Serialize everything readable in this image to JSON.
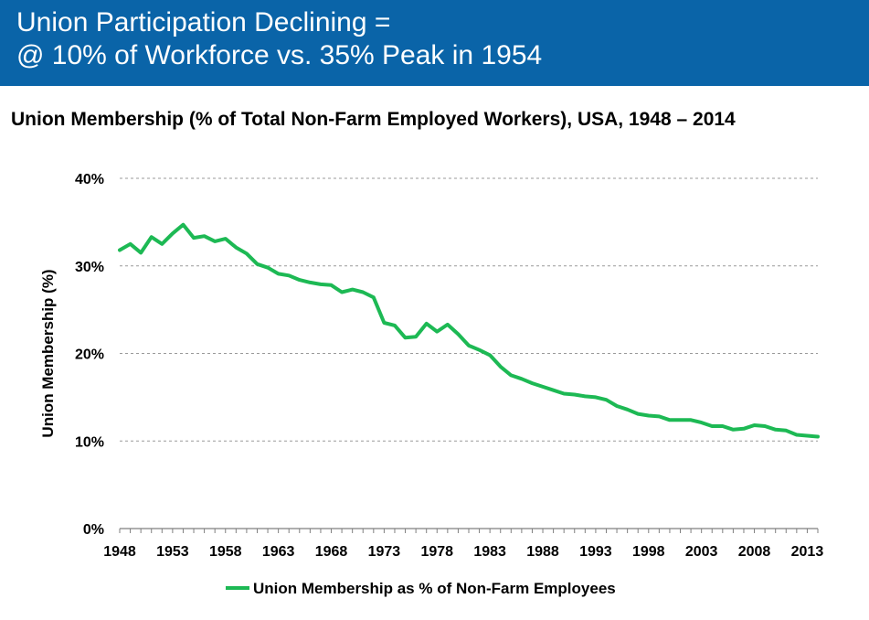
{
  "header": {
    "title_line1": "Union Participation Declining =",
    "title_line2": "@ 10% of Workforce vs. 35% Peak in 1954",
    "background": "#0a64a8"
  },
  "chart_data": {
    "type": "line",
    "title": "Union Membership (% of Total Non-Farm Employed Workers), USA, 1948 – 2014",
    "xlabel": "",
    "ylabel": "Union Membership (%)",
    "ylim": [
      0,
      40
    ],
    "yticks": [
      "0%",
      "10%",
      "20%",
      "30%",
      "40%"
    ],
    "xticks": [
      "1948",
      "1953",
      "1958",
      "1963",
      "1968",
      "1973",
      "1978",
      "1983",
      "1988",
      "1993",
      "1998",
      "2003",
      "2008",
      "2013"
    ],
    "xlim": [
      1948,
      2014
    ],
    "grid": "horizontal dashed",
    "legend": "bottom",
    "color": "#1db954",
    "series": [
      {
        "name": "Union Membership as % of Non-Farm Employees",
        "x": [
          1948,
          1949,
          1950,
          1951,
          1952,
          1953,
          1954,
          1955,
          1956,
          1957,
          1958,
          1959,
          1960,
          1961,
          1962,
          1963,
          1964,
          1965,
          1966,
          1967,
          1968,
          1969,
          1970,
          1971,
          1972,
          1973,
          1974,
          1975,
          1976,
          1977,
          1978,
          1979,
          1980,
          1981,
          1982,
          1983,
          1984,
          1985,
          1986,
          1987,
          1988,
          1989,
          1990,
          1991,
          1992,
          1993,
          1994,
          1995,
          1996,
          1997,
          1998,
          1999,
          2000,
          2001,
          2002,
          2003,
          2004,
          2005,
          2006,
          2007,
          2008,
          2009,
          2010,
          2011,
          2012,
          2013,
          2014
        ],
        "values": [
          31.8,
          32.5,
          31.5,
          33.3,
          32.5,
          33.7,
          34.7,
          33.2,
          33.4,
          32.8,
          33.1,
          32.1,
          31.4,
          30.2,
          29.8,
          29.1,
          28.9,
          28.4,
          28.1,
          27.9,
          27.8,
          27.0,
          27.3,
          27.0,
          26.4,
          23.5,
          23.2,
          21.8,
          21.9,
          23.4,
          22.5,
          23.3,
          22.2,
          20.9,
          20.4,
          19.8,
          18.5,
          17.5,
          17.1,
          16.6,
          16.2,
          15.8,
          15.4,
          15.3,
          15.1,
          15.0,
          14.7,
          14.0,
          13.6,
          13.1,
          12.9,
          12.8,
          12.4,
          12.4,
          12.4,
          12.1,
          11.7,
          11.7,
          11.3,
          11.4,
          11.8,
          11.7,
          11.3,
          11.2,
          10.7,
          10.6,
          10.5
        ]
      }
    ]
  }
}
